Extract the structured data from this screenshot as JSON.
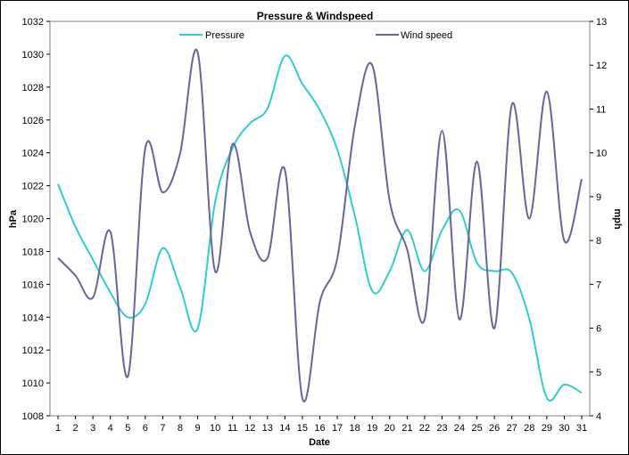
{
  "chart_data": {
    "type": "line",
    "title": "Pressure & Windspeed",
    "xlabel": "Date",
    "ylabel_left": "hPa",
    "ylabel_right": "mph",
    "legend_position": "top",
    "grid": false,
    "x": [
      1,
      2,
      3,
      4,
      5,
      6,
      7,
      8,
      9,
      10,
      11,
      12,
      13,
      14,
      15,
      16,
      17,
      18,
      19,
      20,
      21,
      22,
      23,
      24,
      25,
      26,
      27,
      28,
      29,
      30,
      31
    ],
    "x_ticks": [
      "1",
      "2",
      "3",
      "4",
      "5",
      "6",
      "7",
      "8",
      "9",
      "10",
      "11",
      "12",
      "13",
      "14",
      "15",
      "16",
      "17",
      "18",
      "19",
      "20",
      "21",
      "22",
      "23",
      "24",
      "25",
      "26",
      "27",
      "28",
      "29",
      "30",
      "31"
    ],
    "y_left": {
      "min": 1008,
      "max": 1032,
      "ticks": [
        "1008",
        "1010",
        "1012",
        "1014",
        "1016",
        "1018",
        "1020",
        "1022",
        "1024",
        "1026",
        "1028",
        "1030",
        "1032"
      ]
    },
    "y_right": {
      "min": 4,
      "max": 13,
      "ticks": [
        "4",
        "5",
        "6",
        "7",
        "8",
        "9",
        "10",
        "11",
        "12",
        "13"
      ]
    },
    "series": [
      {
        "name": "Pressure",
        "axis": "left",
        "color": "#33cccc",
        "values": [
          1022.1,
          1019.5,
          1017.5,
          1015.5,
          1014.0,
          1014.8,
          1018.2,
          1015.8,
          1013.3,
          1021.0,
          1024.3,
          1025.8,
          1026.7,
          1029.9,
          1028.2,
          1026.6,
          1024.2,
          1020.2,
          1015.6,
          1016.8,
          1019.3,
          1016.8,
          1019.3,
          1020.5,
          1017.3,
          1016.8,
          1016.7,
          1013.9,
          1009.1,
          1009.9,
          1009.4
        ]
      },
      {
        "name": "Wind speed",
        "axis": "right",
        "color": "#666699",
        "values": [
          7.6,
          7.2,
          6.7,
          8.2,
          4.9,
          10.1,
          9.1,
          10.0,
          12.3,
          7.3,
          10.2,
          8.2,
          7.6,
          9.6,
          4.4,
          6.6,
          7.6,
          10.6,
          12.0,
          8.9,
          7.8,
          6.2,
          10.5,
          6.2,
          9.8,
          6.0,
          11.1,
          8.5,
          11.4,
          8.0,
          9.4
        ]
      }
    ]
  }
}
